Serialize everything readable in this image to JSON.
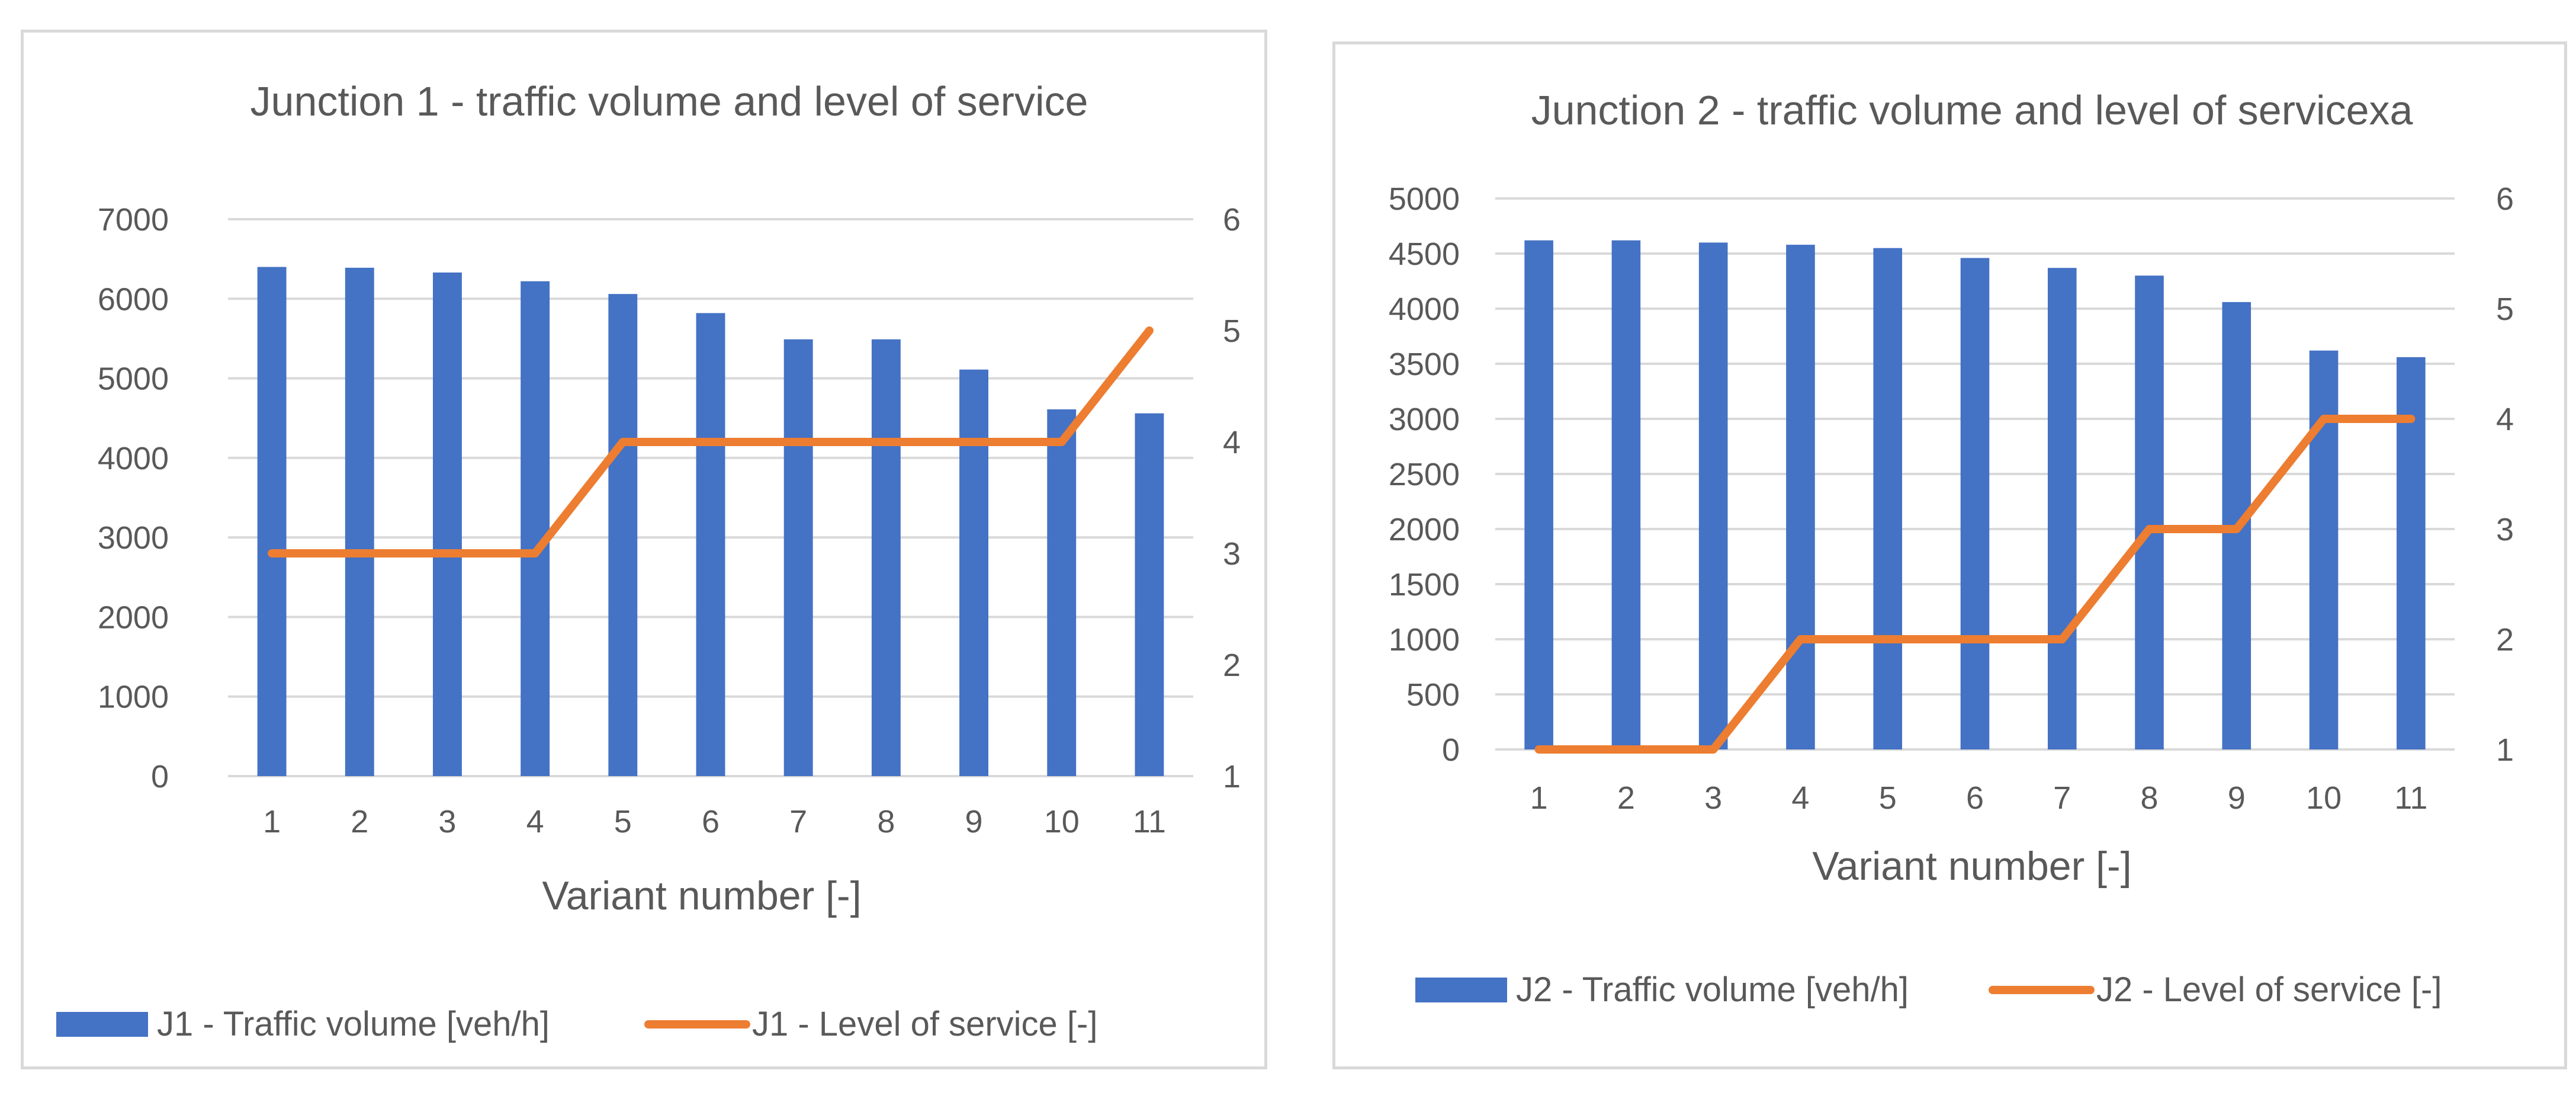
{
  "colors": {
    "bar": "#4472c4",
    "line": "#ed7d31",
    "grid": "#d9d9d9",
    "text": "#595959"
  },
  "chart_data": [
    {
      "type": "bar",
      "title": "Junction 1 - traffic volume and level of service",
      "xlabel": "Variant number [-]",
      "categories": [
        "1",
        "2",
        "3",
        "4",
        "5",
        "6",
        "7",
        "8",
        "9",
        "10",
        "11"
      ],
      "y_left": {
        "ylim": [
          0,
          7000
        ],
        "ticks": [
          "0",
          "1000",
          "2000",
          "3000",
          "4000",
          "5000",
          "6000",
          "7000"
        ]
      },
      "y_right": {
        "ylim": [
          1,
          6
        ],
        "ticks": [
          "1",
          "2",
          "3",
          "4",
          "5",
          "6"
        ]
      },
      "series": [
        {
          "name": "J1 - Traffic volume [veh/h]",
          "type": "bar",
          "axis": "left",
          "values": [
            6400,
            6390,
            6330,
            6220,
            6060,
            5820,
            5490,
            5490,
            5110,
            4610,
            4560
          ]
        },
        {
          "name": "J1 - Level of service [-]",
          "type": "line",
          "axis": "right",
          "values": [
            3,
            3,
            3,
            3,
            4,
            4,
            4,
            4,
            4,
            4,
            5
          ]
        }
      ],
      "legend": "bottom",
      "grid": true
    },
    {
      "type": "bar",
      "title": "Junction 2 - traffic volume and level of servicexa",
      "xlabel": "Variant number [-]",
      "categories": [
        "1",
        "2",
        "3",
        "4",
        "5",
        "6",
        "7",
        "8",
        "9",
        "10",
        "11"
      ],
      "y_left": {
        "ylim": [
          0,
          5000
        ],
        "ticks": [
          "0",
          "500",
          "1000",
          "1500",
          "2000",
          "2500",
          "3000",
          "3500",
          "4000",
          "4500",
          "5000"
        ]
      },
      "y_right": {
        "ylim": [
          1,
          6
        ],
        "ticks": [
          "1",
          "2",
          "3",
          "4",
          "5",
          "6"
        ]
      },
      "series": [
        {
          "name": "J2 - Traffic volume [veh/h]",
          "type": "bar",
          "axis": "left",
          "values": [
            4620,
            4620,
            4600,
            4580,
            4550,
            4460,
            4370,
            4300,
            4060,
            3620,
            3560
          ]
        },
        {
          "name": "J2 - Level of service [-]",
          "type": "line",
          "axis": "right",
          "values": [
            1,
            1,
            1,
            2,
            2,
            2,
            2,
            3,
            3,
            4,
            4
          ]
        }
      ],
      "legend": "bottom",
      "grid": true
    }
  ]
}
